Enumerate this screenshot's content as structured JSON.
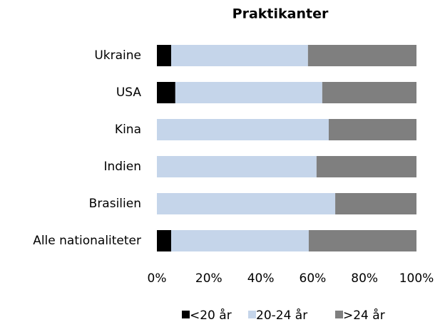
{
  "chart_data": {
    "type": "stacked-bar-horizontal",
    "title": "Praktikanter",
    "categories": [
      "Ukraine",
      "USA",
      "Kina",
      "Indien",
      "Brasilien",
      "Alle nationaliteter"
    ],
    "series": [
      {
        "name": "<20 år",
        "color": "#000000",
        "values": [
          5.5,
          7.1,
          0,
          0,
          0,
          5.5
        ]
      },
      {
        "name": "20-24 år",
        "color": "#c5d5ea",
        "values": [
          52.7,
          56.6,
          66.2,
          61.5,
          68.7,
          53.0
        ]
      },
      {
        "name": ">24 år",
        "color": "#7f7f7f",
        "values": [
          41.8,
          36.3,
          33.8,
          38.5,
          31.3,
          41.5
        ]
      }
    ],
    "xlim": [
      0,
      100
    ],
    "xticks": [
      {
        "value": 0,
        "label": "0%"
      },
      {
        "value": 20,
        "label": "20%"
      },
      {
        "value": 40,
        "label": "40%"
      },
      {
        "value": 60,
        "label": "60%"
      },
      {
        "value": 80,
        "label": "80%"
      },
      {
        "value": 100,
        "label": "100%"
      }
    ],
    "legend": "bottom"
  }
}
